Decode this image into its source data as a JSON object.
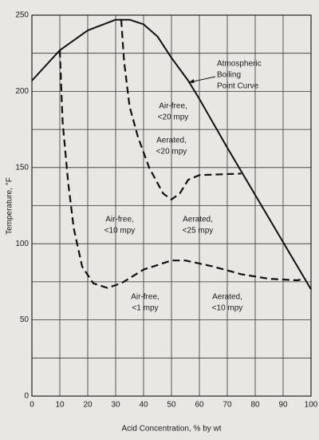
{
  "chart_data": {
    "type": "line",
    "x_label": "Acid Concentration, % by wt",
    "y_label": "Temperature, °F",
    "xlim": [
      0,
      100
    ],
    "xticks": [
      0,
      10,
      20,
      30,
      40,
      50,
      60,
      70,
      80,
      90,
      100
    ],
    "ylim": [
      0,
      250
    ],
    "yticks": [
      0,
      50,
      100,
      150,
      200,
      250
    ],
    "minor_yticks": [
      25,
      75,
      125,
      175,
      225
    ],
    "grid": true,
    "series": [
      {
        "color": "#111111",
        "style": "solid",
        "x": [
          0,
          10,
          20,
          30,
          35,
          40,
          45,
          50,
          56,
          60,
          70,
          80,
          90,
          100
        ],
        "values": [
          207,
          227,
          240,
          247,
          247,
          244,
          236,
          222,
          207,
          195,
          163,
          132,
          101,
          70
        ]
      },
      {
        "color": "#111111",
        "style": "dashed",
        "x": [
          10,
          11,
          13,
          15,
          18,
          22,
          27,
          32,
          40,
          50,
          55,
          65,
          75,
          85,
          95,
          98
        ],
        "values": [
          227,
          180,
          140,
          110,
          85,
          74,
          71,
          74,
          83,
          89,
          89,
          85,
          80,
          77,
          76,
          77
        ]
      },
      {
        "color": "#111111",
        "style": "dashed",
        "x": [
          32,
          33,
          35,
          38,
          42,
          47,
          50,
          53,
          56,
          60,
          75
        ],
        "values": [
          247,
          220,
          190,
          170,
          150,
          133,
          129,
          133,
          142,
          145,
          146
        ]
      }
    ],
    "annotations": [
      [
        "Air-free,",
        "<20 mpy"
      ],
      [
        "Aerated,",
        "<20 mpy"
      ],
      [
        "Air-free,",
        "<10 mpy"
      ],
      [
        "Aerated,",
        "<25 mpy"
      ],
      [
        "Air-free,",
        "<1 mpy"
      ],
      [
        "Aerated,",
        "<10 mpy"
      ],
      [
        "Atmospheric",
        "Boiling",
        "Point Curve"
      ]
    ]
  }
}
